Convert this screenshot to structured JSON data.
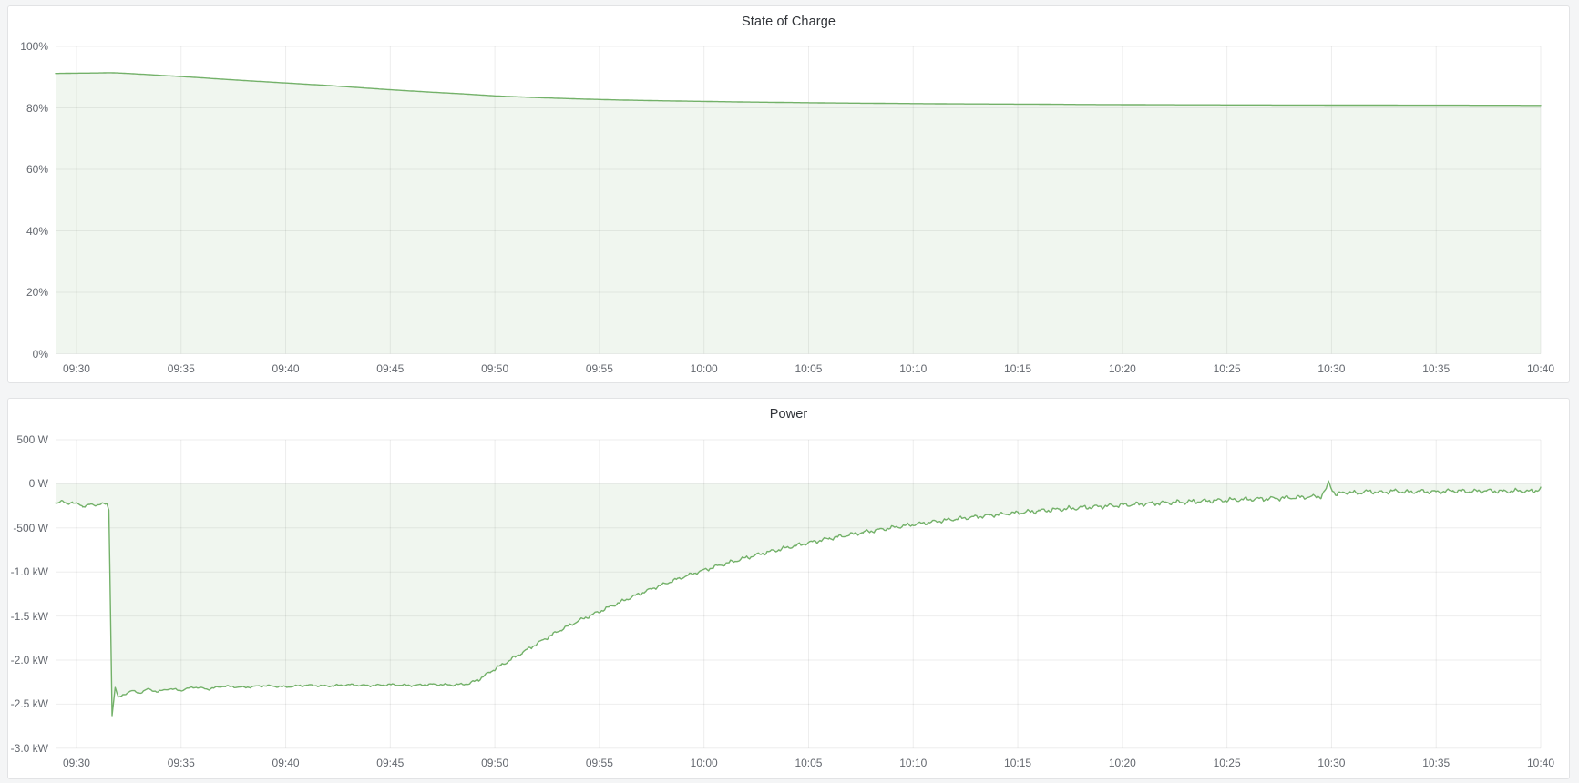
{
  "page": {
    "background_color": "#f4f5f6",
    "panel_background": "#ffffff",
    "accent_green": "#73b169"
  },
  "chart_data": [
    {
      "type": "area",
      "title": "State of Charge",
      "unit": "percent",
      "legend": "none",
      "grid": true,
      "line_color": "#73b169",
      "fill_color": "#73b169",
      "fill_opacity": 0.11,
      "x_ticks": [
        "09:30",
        "09:35",
        "09:40",
        "09:45",
        "09:50",
        "09:55",
        "10:00",
        "10:05",
        "10:10",
        "10:15",
        "10:20",
        "10:25",
        "10:30",
        "10:35",
        "10:40"
      ],
      "y_ticks": [
        "100%",
        "80%",
        "60%",
        "40%",
        "20%",
        "0%"
      ],
      "ylim": [
        0,
        100
      ],
      "xlim_minutes_from_0930": [
        -1,
        70
      ],
      "series": [
        {
          "name": "State of Charge",
          "points": [
            [
              -1,
              91.2
            ],
            [
              0,
              91.3
            ],
            [
              1,
              91.35
            ],
            [
              1.6,
              91.45
            ],
            [
              2.2,
              91.3
            ],
            [
              3,
              91.0
            ],
            [
              5,
              90.2
            ],
            [
              8,
              88.9
            ],
            [
              10,
              88.1
            ],
            [
              12,
              87.3
            ],
            [
              15,
              85.9
            ],
            [
              17,
              85.1
            ],
            [
              18.5,
              84.55
            ],
            [
              20,
              83.9
            ],
            [
              22,
              83.35
            ],
            [
              24,
              82.9
            ],
            [
              26,
              82.55
            ],
            [
              28,
              82.3
            ],
            [
              30,
              82.1
            ],
            [
              32,
              81.9
            ],
            [
              34,
              81.75
            ],
            [
              36,
              81.6
            ],
            [
              38,
              81.5
            ],
            [
              40,
              81.4
            ],
            [
              42,
              81.3
            ],
            [
              44,
              81.25
            ],
            [
              46,
              81.2
            ],
            [
              48,
              81.1
            ],
            [
              50,
              81.05
            ],
            [
              52,
              81.0
            ],
            [
              54,
              80.97
            ],
            [
              56,
              80.95
            ],
            [
              58,
              80.92
            ],
            [
              60,
              80.9
            ],
            [
              62,
              80.88
            ],
            [
              64,
              80.87
            ],
            [
              66,
              80.85
            ],
            [
              68,
              80.83
            ],
            [
              70,
              80.8
            ]
          ]
        }
      ],
      "noise": null
    },
    {
      "type": "area",
      "title": "Power",
      "unit": "watt",
      "legend": "none",
      "grid": true,
      "line_color": "#73b169",
      "fill_color": "#73b169",
      "fill_opacity": 0.11,
      "x_ticks": [
        "09:30",
        "09:35",
        "09:40",
        "09:45",
        "09:50",
        "09:55",
        "10:00",
        "10:05",
        "10:10",
        "10:15",
        "10:20",
        "10:25",
        "10:30",
        "10:35",
        "10:40"
      ],
      "y_ticks": [
        "500 W",
        "0 W",
        "-500 W",
        "-1.0 kW",
        "-1.5 kW",
        "-2.0 kW",
        "-2.5 kW",
        "-3.0 kW"
      ],
      "ylim": [
        -3000,
        500
      ],
      "xlim_minutes_from_0930": [
        -1,
        70
      ],
      "series": [
        {
          "name": "Power",
          "points": [
            [
              -1,
              -225
            ],
            [
              -0.7,
              -185
            ],
            [
              -0.45,
              -240
            ],
            [
              -0.2,
              -205
            ],
            [
              0,
              -220
            ],
            [
              0.3,
              -265
            ],
            [
              0.6,
              -225
            ],
            [
              0.9,
              -255
            ],
            [
              1.2,
              -215
            ],
            [
              1.45,
              -235
            ],
            [
              1.55,
              -300
            ],
            [
              1.7,
              -2630
            ],
            [
              1.85,
              -2300
            ],
            [
              2.0,
              -2430
            ],
            [
              2.3,
              -2390
            ],
            [
              2.6,
              -2345
            ],
            [
              3.0,
              -2375
            ],
            [
              3.4,
              -2330
            ],
            [
              3.9,
              -2360
            ],
            [
              4.4,
              -2325
            ],
            [
              5.0,
              -2345
            ],
            [
              5.6,
              -2305
            ],
            [
              6.3,
              -2330
            ],
            [
              7.0,
              -2295
            ],
            [
              8.0,
              -2310
            ],
            [
              9.0,
              -2290
            ],
            [
              10.0,
              -2305
            ],
            [
              11,
              -2285
            ],
            [
              12,
              -2295
            ],
            [
              13,
              -2280
            ],
            [
              14,
              -2290
            ],
            [
              15,
              -2278
            ],
            [
              16,
              -2288
            ],
            [
              17,
              -2275
            ],
            [
              18,
              -2282
            ],
            [
              18.8,
              -2268
            ],
            [
              19.3,
              -2210
            ],
            [
              19.8,
              -2130
            ],
            [
              20.3,
              -2060
            ],
            [
              20.8,
              -1990
            ],
            [
              21.3,
              -1915
            ],
            [
              21.8,
              -1845
            ],
            [
              22.5,
              -1745
            ],
            [
              23.2,
              -1650
            ],
            [
              24,
              -1555
            ],
            [
              24.8,
              -1470
            ],
            [
              25.6,
              -1385
            ],
            [
              26.4,
              -1300
            ],
            [
              27.2,
              -1220
            ],
            [
              28,
              -1145
            ],
            [
              28.8,
              -1075
            ],
            [
              29.6,
              -1010
            ],
            [
              30.4,
              -950
            ],
            [
              31.2,
              -895
            ],
            [
              32,
              -840
            ],
            [
              32.8,
              -790
            ],
            [
              33.6,
              -745
            ],
            [
              34.4,
              -700
            ],
            [
              35.2,
              -660
            ],
            [
              36,
              -620
            ],
            [
              36.8,
              -585
            ],
            [
              37.6,
              -550
            ],
            [
              38.4,
              -520
            ],
            [
              39.2,
              -490
            ],
            [
              40,
              -462
            ],
            [
              41,
              -430
            ],
            [
              42,
              -400
            ],
            [
              43,
              -374
            ],
            [
              44,
              -350
            ],
            [
              45,
              -328
            ],
            [
              46,
              -308
            ],
            [
              47,
              -290
            ],
            [
              48,
              -272
            ],
            [
              49,
              -256
            ],
            [
              50,
              -242
            ],
            [
              51,
              -228
            ],
            [
              52,
              -216
            ],
            [
              53,
              -205
            ],
            [
              54,
              -195
            ],
            [
              55,
              -185
            ],
            [
              56,
              -176
            ],
            [
              57,
              -168
            ],
            [
              58,
              -158
            ],
            [
              59,
              -148
            ],
            [
              59.5,
              -140
            ],
            [
              59.75,
              -60
            ],
            [
              59.85,
              15
            ],
            [
              60.0,
              -45
            ],
            [
              60.2,
              -125
            ],
            [
              60.6,
              -95
            ],
            [
              61.2,
              -105
            ],
            [
              61.8,
              -85
            ],
            [
              62.4,
              -100
            ],
            [
              63,
              -80
            ],
            [
              63.6,
              -95
            ],
            [
              64.2,
              -85
            ],
            [
              65,
              -92
            ],
            [
              65.8,
              -80
            ],
            [
              66.6,
              -88
            ],
            [
              67.4,
              -78
            ],
            [
              68.2,
              -86
            ],
            [
              69,
              -80
            ],
            [
              69.6,
              -88
            ],
            [
              70,
              -55
            ]
          ]
        }
      ],
      "noise": {
        "segments": [
          [
            -1,
            1.5,
            14
          ],
          [
            1.8,
            18.8,
            13
          ],
          [
            18.8,
            30,
            22
          ],
          [
            30,
            45,
            26
          ],
          [
            45,
            58,
            30
          ],
          [
            58,
            70,
            28
          ]
        ],
        "freqs": [
          9.7,
          25.3,
          57.1
        ],
        "phases": [
          0,
          1.3,
          0.7
        ],
        "weights": [
          0.55,
          0.33,
          0.22
        ]
      }
    }
  ]
}
